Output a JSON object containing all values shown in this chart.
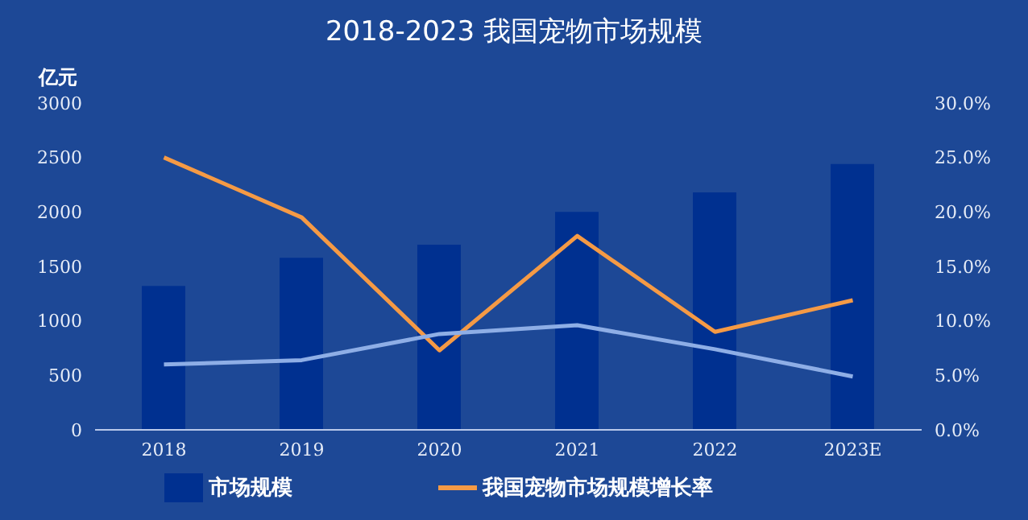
{
  "chart_data": {
    "type": "bar",
    "title": "2018-2023 我国宠物市场规模",
    "ylabel": "亿元",
    "categories": [
      "2018",
      "2019",
      "2020",
      "2021",
      "2022",
      "2023E"
    ],
    "series": [
      {
        "name": "市场规模",
        "color": "#003090",
        "values": [
          1320,
          1580,
          1700,
          2000,
          2180,
          2440
        ]
      },
      {
        "name": "我国宠物市场规模增长率",
        "type": "line",
        "axis": "y2",
        "color": "#f59a45",
        "values": [
          25.0,
          19.5,
          7.3,
          17.8,
          9.0,
          11.9
        ]
      },
      {
        "type": "line",
        "axis": "y2",
        "color": "#8eaee6",
        "values": [
          6.0,
          6.4,
          8.8,
          9.6,
          7.4,
          4.9
        ]
      }
    ],
    "ylim": [
      0,
      3000
    ],
    "yticks": [
      0,
      500,
      1000,
      1500,
      2000,
      2500,
      3000
    ],
    "y2lim": [
      0,
      30
    ],
    "y2ticks": [
      {
        "value": 0,
        "label": "0.0%"
      },
      {
        "value": 5,
        "label": "5.0%"
      },
      {
        "value": 10,
        "label": "10.0%"
      },
      {
        "value": 15,
        "label": "15.0%"
      },
      {
        "value": 20,
        "label": "20.0%"
      },
      {
        "value": 25,
        "label": "25.0%"
      },
      {
        "value": 30,
        "label": "30.0%"
      }
    ],
    "legend": "bottom",
    "marker": "none",
    "grid": false
  }
}
